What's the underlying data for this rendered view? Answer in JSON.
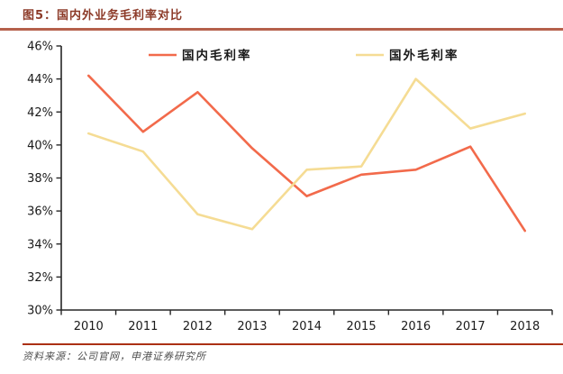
{
  "figure": {
    "title": "图5：国内外业务毛利率对比",
    "source_label": "资料来源：公司官网，申港证券研究所"
  },
  "colors": {
    "title_text": "#8c3a28",
    "title_rule": "#b5604b",
    "footer_rule": "#ab3015",
    "axis": "#262626",
    "tick_label": "#1a1a1a",
    "domestic_line": "#f26a4b",
    "foreign_line": "#f5dc94"
  },
  "chart_data": {
    "type": "line",
    "title": "国内外业务毛利率对比",
    "categories": [
      "2010",
      "2011",
      "2012",
      "2013",
      "2014",
      "2015",
      "2016",
      "2017",
      "2018"
    ],
    "series": [
      {
        "name": "国内毛利率",
        "color": "#f26a4b",
        "values": [
          44.2,
          40.8,
          43.2,
          39.8,
          36.9,
          38.2,
          38.5,
          39.9,
          34.8
        ]
      },
      {
        "name": "国外毛利率",
        "color": "#f5dc94",
        "values": [
          40.7,
          39.6,
          35.8,
          34.9,
          38.5,
          38.7,
          44.0,
          41.0,
          41.9
        ]
      }
    ],
    "xlabel": "",
    "ylabel": "",
    "ylim": [
      30,
      46
    ],
    "ytick_step": 2,
    "ytick_suffix": "%",
    "grid": false,
    "legend_position": "top-inside"
  }
}
